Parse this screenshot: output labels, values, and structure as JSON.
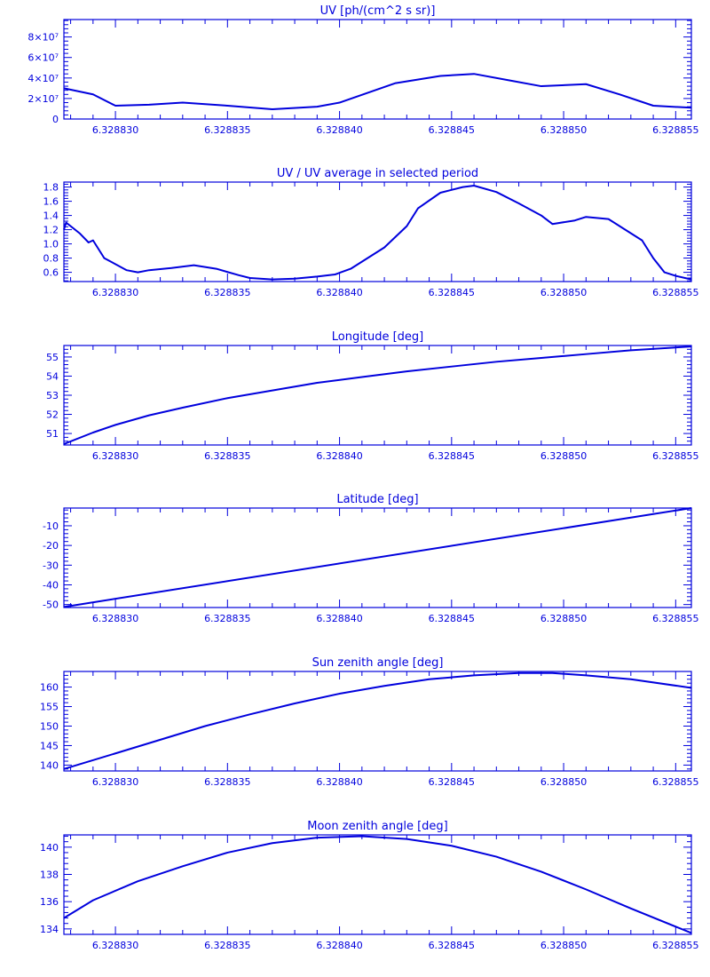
{
  "colors": {
    "ink": "#0000dd",
    "background": "#ffffff"
  },
  "x_tick_labels": [
    "6.328830",
    "6.328835",
    "6.328840",
    "6.328845",
    "6.328850",
    "6.328855"
  ],
  "chart_data": [
    {
      "type": "line",
      "title": "UV [ph/(cm^2 s sr)]",
      "xlim": [
        6.3288277,
        6.3288557
      ],
      "ylim": [
        0,
        97000000.0
      ],
      "yticks": [
        0,
        20000000.0,
        40000000.0,
        60000000.0,
        80000000.0
      ],
      "ytick_labels": [
        "0",
        "2×10⁷",
        "4×10⁷",
        "6×10⁷",
        "8×10⁷"
      ],
      "x": [
        6.3288277,
        6.328829,
        6.32883,
        6.3288315,
        6.328833,
        6.328835,
        6.328837,
        6.328839,
        6.32884,
        6.3288425,
        6.3288445,
        6.328846,
        6.3288475,
        6.328849,
        6.328851,
        6.3288525,
        6.328854,
        6.3288557
      ],
      "y": [
        30000000.0,
        24000000.0,
        13000000.0,
        14000000.0,
        16000000.0,
        13000000.0,
        9500000.0,
        12000000.0,
        16000000.0,
        35000000.0,
        42000000.0,
        44000000.0,
        38000000.0,
        32000000.0,
        34000000.0,
        24000000.0,
        13000000.0,
        11000000.0
      ]
    },
    {
      "type": "line",
      "title": "UV / UV average in selected period",
      "xlim": [
        6.3288277,
        6.3288557
      ],
      "ylim": [
        0.47,
        1.87
      ],
      "yticks": [
        0.6,
        0.8,
        1.0,
        1.2,
        1.4,
        1.6,
        1.8
      ],
      "ytick_labels": [
        "0.6",
        "0.8",
        "1.0",
        "1.2",
        "1.4",
        "1.6",
        "1.8"
      ],
      "x": [
        6.3288277,
        6.3288278,
        6.3288284,
        6.3288288,
        6.328829,
        6.3288295,
        6.3288305,
        6.328831,
        6.3288315,
        6.3288325,
        6.3288335,
        6.3288345,
        6.3288355,
        6.328836,
        6.328837,
        6.328838,
        6.328839,
        6.3288398,
        6.3288405,
        6.328841,
        6.328842,
        6.328843,
        6.3288435,
        6.3288445,
        6.3288455,
        6.328846,
        6.328847,
        6.328848,
        6.328849,
        6.3288495,
        6.3288505,
        6.328851,
        6.328852,
        6.3288525,
        6.3288535,
        6.328854,
        6.3288545,
        6.328855,
        6.3288557
      ],
      "y": [
        1.2,
        1.3,
        1.15,
        1.02,
        1.05,
        0.8,
        0.63,
        0.6,
        0.63,
        0.66,
        0.7,
        0.65,
        0.56,
        0.52,
        0.5,
        0.51,
        0.54,
        0.57,
        0.65,
        0.75,
        0.95,
        1.25,
        1.5,
        1.72,
        1.8,
        1.82,
        1.73,
        1.57,
        1.4,
        1.28,
        1.33,
        1.38,
        1.35,
        1.25,
        1.05,
        0.8,
        0.6,
        0.55,
        0.5
      ]
    },
    {
      "type": "line",
      "title": "Longitude [deg]",
      "xlim": [
        6.3288277,
        6.3288557
      ],
      "ylim": [
        50.4,
        55.6
      ],
      "yticks": [
        51,
        52,
        53,
        54,
        55
      ],
      "ytick_labels": [
        "51",
        "52",
        "53",
        "54",
        "55"
      ],
      "x": [
        6.3288277,
        6.328829,
        6.32883,
        6.3288315,
        6.328833,
        6.328835,
        6.328837,
        6.328839,
        6.328841,
        6.328843,
        6.328845,
        6.328847,
        6.328849,
        6.328851,
        6.328853,
        6.3288557
      ],
      "y": [
        50.45,
        51.05,
        51.45,
        51.95,
        52.35,
        52.85,
        53.25,
        53.65,
        53.95,
        54.25,
        54.5,
        54.75,
        54.95,
        55.15,
        55.35,
        55.55
      ]
    },
    {
      "type": "line",
      "title": "Latitude [deg]",
      "xlim": [
        6.3288277,
        6.3288557
      ],
      "ylim": [
        -51.5,
        -1.0
      ],
      "yticks": [
        -50,
        -40,
        -30,
        -20,
        -10
      ],
      "ytick_labels": [
        "-50",
        "-40",
        "-30",
        "-20",
        "-10"
      ],
      "x": [
        6.3288277,
        6.3288557
      ],
      "y": [
        -51.2,
        -1.0
      ]
    },
    {
      "type": "line",
      "title": "Sun zenith angle [deg]",
      "xlim": [
        6.3288277,
        6.3288557
      ],
      "ylim": [
        138.5,
        164.0
      ],
      "yticks": [
        140,
        145,
        150,
        155,
        160
      ],
      "ytick_labels": [
        "140",
        "145",
        "150",
        "155",
        "160"
      ],
      "x": [
        6.3288277,
        6.32883,
        6.328832,
        6.328834,
        6.328836,
        6.328838,
        6.32884,
        6.328842,
        6.328844,
        6.328846,
        6.328848,
        6.3288495,
        6.328851,
        6.328853,
        6.3288557
      ],
      "y": [
        139.0,
        143.0,
        146.5,
        150.0,
        153.0,
        155.8,
        158.3,
        160.3,
        162.0,
        163.0,
        163.6,
        163.6,
        163.0,
        162.0,
        159.8
      ]
    },
    {
      "type": "line",
      "title": "Moon zenith angle [deg]",
      "xlim": [
        6.3288277,
        6.3288557
      ],
      "ylim": [
        133.6,
        140.9
      ],
      "yticks": [
        134,
        136,
        138,
        140
      ],
      "ytick_labels": [
        "134",
        "136",
        "138",
        "140"
      ],
      "x": [
        6.3288277,
        6.328829,
        6.328831,
        6.328833,
        6.328835,
        6.328837,
        6.328839,
        6.328841,
        6.328843,
        6.328845,
        6.328847,
        6.328849,
        6.328851,
        6.328853,
        6.3288557
      ],
      "y": [
        134.8,
        136.1,
        137.5,
        138.6,
        139.6,
        140.3,
        140.7,
        140.8,
        140.6,
        140.1,
        139.3,
        138.2,
        136.9,
        135.5,
        133.7
      ]
    }
  ]
}
